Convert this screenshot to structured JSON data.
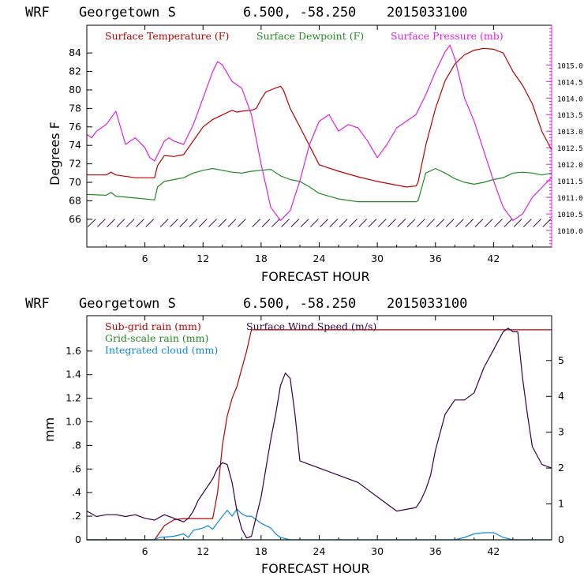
{
  "chart_data": [
    {
      "type": "line",
      "header": {
        "model": "WRF",
        "location": "Georgetown S",
        "coords": "6.500, -58.250",
        "run": "2015033100"
      },
      "xlabel": "FORECAST HOUR",
      "ylabel": "Degrees F",
      "xlim": [
        0,
        48
      ],
      "ylim": [
        63,
        87
      ],
      "y2lim": [
        1009.5,
        1016.2
      ],
      "x_ticks": [
        "6",
        "12",
        "18",
        "24",
        "30",
        "36",
        "42"
      ],
      "y_ticks": [
        "66",
        "68",
        "70",
        "72",
        "74",
        "76",
        "78",
        "80",
        "82",
        "84"
      ],
      "y2_ticks": [
        "1010.0",
        "1010.5",
        "1011.0",
        "1011.5",
        "1012.0",
        "1012.5",
        "1013.0",
        "1013.5",
        "1014.0",
        "1014.5",
        "1015.0"
      ],
      "colors": {
        "temperature": "#bb0000",
        "dewpoint": "#228822",
        "pressure": "#dd22dd",
        "wind_barbs": "#330044"
      },
      "series": [
        {
          "name": "Surface Temperature (F)",
          "axis": "left",
          "x": [
            0,
            2,
            2.5,
            3,
            5,
            7,
            7.3,
            8,
            9,
            10,
            11,
            12,
            13,
            14,
            15,
            15.5,
            16,
            17,
            17.5,
            18,
            18.5,
            19,
            19.5,
            20,
            20.3,
            21,
            22,
            24,
            26,
            28,
            30,
            32,
            33,
            34,
            34.2,
            35,
            36,
            37,
            38,
            39,
            40,
            41,
            42,
            43,
            44,
            45,
            46,
            47,
            48
          ],
          "values": [
            70.8,
            70.8,
            71.1,
            70.8,
            70.5,
            70.5,
            71.8,
            72.9,
            72.8,
            73.0,
            74.5,
            76.0,
            76.8,
            77.3,
            77.8,
            77.6,
            77.7,
            77.8,
            78.0,
            79.0,
            79.8,
            80.0,
            80.2,
            80.4,
            80.0,
            78.0,
            76.0,
            71.9,
            71.2,
            70.6,
            70.1,
            69.7,
            69.5,
            69.6,
            70.0,
            74.0,
            78.0,
            81.0,
            82.8,
            83.8,
            84.3,
            84.5,
            84.4,
            84.0,
            82.0,
            80.5,
            78.5,
            75.5,
            73.5
          ]
        },
        {
          "name": "Surface Dewpoint (F)",
          "axis": "left",
          "x": [
            0,
            2,
            2.5,
            3,
            5,
            7,
            7.3,
            8,
            9,
            10,
            11,
            12,
            13,
            14,
            15,
            16,
            17,
            18,
            19,
            20,
            21,
            22,
            23,
            24,
            26,
            28,
            30,
            32,
            34,
            34.2,
            35,
            36,
            37,
            38,
            39,
            40,
            41,
            42,
            43,
            44,
            45,
            46,
            47,
            48
          ],
          "values": [
            68.7,
            68.6,
            68.9,
            68.5,
            68.3,
            68.1,
            69.5,
            70.1,
            70.3,
            70.5,
            71.0,
            71.3,
            71.5,
            71.3,
            71.1,
            71.0,
            71.2,
            71.3,
            71.4,
            70.7,
            70.3,
            70.1,
            69.5,
            68.8,
            68.2,
            67.9,
            67.9,
            67.9,
            67.9,
            68.0,
            71.0,
            71.5,
            71.0,
            70.4,
            70.0,
            69.8,
            70.0,
            70.3,
            70.5,
            71.0,
            71.1,
            71.0,
            70.8,
            71.0
          ]
        },
        {
          "name": "Surface Pressure (mb)",
          "axis": "right",
          "x": [
            0,
            0.5,
            1,
            2,
            3,
            3.5,
            4,
            5,
            6,
            6.5,
            7,
            7.5,
            8,
            8.5,
            9,
            10,
            11,
            12,
            13,
            13.5,
            14,
            15,
            16,
            17,
            18,
            19,
            19.5,
            20,
            21,
            22,
            23,
            24,
            25,
            26,
            27,
            28,
            29,
            30,
            31,
            32,
            33,
            34,
            35,
            36,
            37,
            37.5,
            38,
            39,
            40,
            41,
            42,
            43,
            44,
            45,
            46,
            47,
            48
          ],
          "values": [
            1012.9,
            1012.8,
            1013.0,
            1013.2,
            1013.6,
            1013.1,
            1012.6,
            1012.8,
            1012.5,
            1012.2,
            1012.1,
            1012.4,
            1012.7,
            1012.8,
            1012.7,
            1012.6,
            1013.2,
            1014.0,
            1014.8,
            1015.1,
            1015.0,
            1014.5,
            1014.3,
            1013.5,
            1012.0,
            1010.7,
            1010.5,
            1010.3,
            1010.6,
            1011.5,
            1012.6,
            1013.3,
            1013.5,
            1013.0,
            1013.2,
            1013.1,
            1012.7,
            1012.2,
            1012.6,
            1013.1,
            1013.3,
            1013.5,
            1014.1,
            1014.8,
            1015.4,
            1015.6,
            1015.2,
            1014.0,
            1013.3,
            1012.4,
            1011.5,
            1010.7,
            1010.3,
            1010.5,
            1011.0,
            1011.3,
            1011.6
          ]
        }
      ],
      "wind_barbs_hours": [
        0.5,
        1.5,
        2.5,
        3.5,
        4.5,
        5.5,
        6.5,
        8,
        9,
        10,
        11,
        12,
        13,
        14,
        15,
        16,
        17.5,
        18.5,
        19.5,
        20.5,
        21.5,
        22.5,
        23.5,
        24.5,
        25.5,
        26.5,
        27.5,
        28.5,
        29.5,
        30.5,
        31.5,
        32.5,
        33.5,
        34.5,
        35.5,
        36.5,
        37.5,
        38.5,
        39.5,
        40.5,
        41.5,
        42.5,
        43.5,
        44.5,
        45.5,
        46.5,
        47.5
      ]
    },
    {
      "type": "line",
      "header": {
        "model": "WRF",
        "location": "Georgetown S",
        "coords": "6.500, -58.250",
        "run": "2015033100"
      },
      "xlabel": "FORECAST HOUR",
      "ylabel": "mm",
      "xlim": [
        0,
        48
      ],
      "ylim": [
        0,
        1.9
      ],
      "y2lim": [
        0,
        6.25
      ],
      "x_ticks": [
        "6",
        "12",
        "18",
        "24",
        "30",
        "36",
        "42"
      ],
      "y_ticks": [
        "0",
        ".2",
        ".4",
        ".6",
        ".8",
        "1.0",
        "1.2",
        "1.4",
        "1.6"
      ],
      "y2_ticks": [
        "0",
        "1",
        "2",
        "3",
        "4",
        "5"
      ],
      "colors": {
        "subgrid": "#bb0000",
        "gridscale": "#228822",
        "cloud": "#1188dd",
        "wind": "#330044"
      },
      "series": [
        {
          "name": "Sub-grid rain (mm)",
          "axis": "left",
          "x": [
            0,
            7,
            8,
            9,
            10,
            13,
            13.5,
            14,
            14.5,
            15,
            15.5,
            16,
            16.5,
            17,
            48
          ],
          "values": [
            0,
            0,
            0.12,
            0.17,
            0.18,
            0.18,
            0.4,
            0.8,
            1.05,
            1.2,
            1.3,
            1.45,
            1.6,
            1.78,
            1.78
          ]
        },
        {
          "name": "Grid-scale rain (mm)",
          "axis": "left",
          "x": [
            0,
            48
          ],
          "values": [
            0,
            0
          ]
        },
        {
          "name": "Integrated cloud (mm)",
          "axis": "left",
          "x": [
            0,
            7,
            7.5,
            9,
            10,
            10.5,
            11,
            12,
            12.5,
            13,
            14,
            14.5,
            15,
            15.5,
            16,
            16.5,
            17,
            17.5,
            18,
            18.5,
            19,
            19.5,
            20,
            21,
            38,
            39,
            40,
            41,
            42,
            43,
            44,
            48
          ],
          "values": [
            0,
            0,
            0.02,
            0.03,
            0.05,
            0.02,
            0.08,
            0.1,
            0.12,
            0.09,
            0.2,
            0.25,
            0.2,
            0.26,
            0.22,
            0.2,
            0.2,
            0.17,
            0.14,
            0.12,
            0.1,
            0.05,
            0.02,
            0,
            0,
            0.02,
            0.05,
            0.06,
            0.06,
            0.02,
            0,
            0
          ]
        },
        {
          "name": "Surface Wind Speed (m/s)",
          "axis": "right",
          "x": [
            0,
            1,
            2,
            3,
            4,
            5,
            6,
            7,
            8,
            9,
            10,
            10.5,
            11,
            11.5,
            12,
            12.5,
            13,
            13.5,
            14,
            14.5,
            15,
            15.5,
            16,
            16.5,
            17,
            18,
            19,
            19.5,
            20,
            20.5,
            21,
            21.5,
            22,
            23,
            24,
            26,
            28,
            30,
            31,
            32,
            33,
            34,
            34.5,
            35,
            35.5,
            36,
            37,
            38,
            39,
            40,
            41,
            42,
            43,
            43.5,
            44,
            44.5,
            45,
            45.5,
            46,
            47,
            48
          ],
          "values": [
            0.8,
            0.65,
            0.7,
            0.7,
            0.65,
            0.7,
            0.6,
            0.55,
            0.7,
            0.6,
            0.5,
            0.6,
            0.8,
            1.1,
            1.3,
            1.5,
            1.7,
            2.0,
            2.15,
            2.1,
            1.6,
            0.8,
            0.3,
            0.05,
            0.1,
            1.2,
            2.8,
            3.5,
            4.3,
            4.65,
            4.5,
            3.5,
            2.2,
            2.1,
            2.0,
            1.8,
            1.6,
            1.2,
            1.0,
            0.8,
            0.85,
            0.9,
            1.1,
            1.4,
            1.8,
            2.5,
            3.5,
            3.9,
            3.9,
            4.1,
            4.8,
            5.3,
            5.8,
            5.9,
            5.8,
            5.8,
            4.5,
            3.5,
            2.6,
            2.1,
            2.0
          ]
        }
      ]
    }
  ]
}
